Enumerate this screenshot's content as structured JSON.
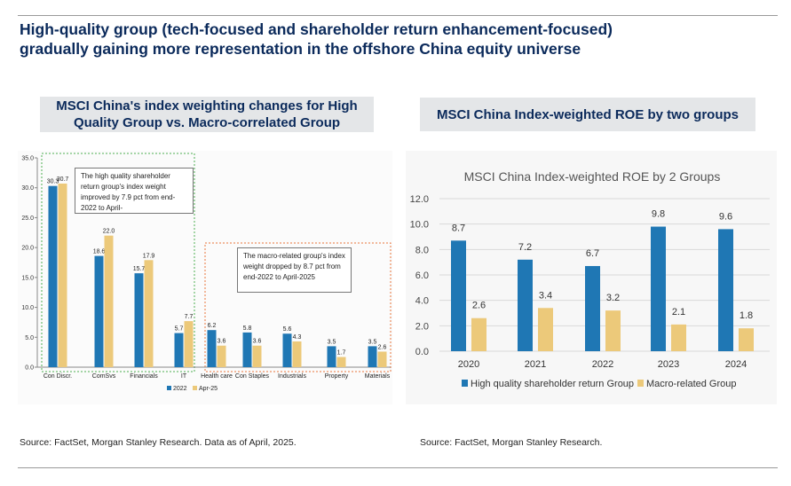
{
  "headline_line1": "High-quality group (tech-focused and shareholder return enhancement-focused)",
  "headline_line2": "gradually gaining more representation in the offshore China equity universe",
  "left_panel_title_line1": "MSCI China's index weighting changes for High",
  "left_panel_title_line2": "Quality Group  vs. Macro-correlated Group",
  "right_panel_title": "MSCI China Index-weighted ROE by two groups",
  "left_source": "Source: FactSet, Morgan Stanley Research. Data as of April, 2025.",
  "right_source": "Source: FactSet, Morgan Stanley Research.",
  "colors": {
    "navy": "#0b2a5b",
    "blue": "#1f77b4",
    "tan": "#ecc97a",
    "green_dash": "#4caf50",
    "orange_dash": "#e8743b"
  },
  "chart_data": [
    {
      "type": "bar",
      "title": "",
      "categories": [
        "Con Discr.",
        "ComSvs",
        "Financials",
        "IT",
        "Health care",
        "Con Staples",
        "Industrials",
        "Property",
        "Materials"
      ],
      "series": [
        {
          "name": "2022",
          "values": [
            30.3,
            18.6,
            15.7,
            5.7,
            6.2,
            5.8,
            5.6,
            3.5,
            3.5
          ]
        },
        {
          "name": "Apr-25",
          "values": [
            30.7,
            22.0,
            17.9,
            7.7,
            3.6,
            3.6,
            4.3,
            1.7,
            2.6
          ]
        }
      ],
      "data_labels": [
        [
          "30.3",
          "18.6",
          "15.7",
          "5.7",
          "6.2",
          "5.8",
          "5.6",
          "3.5",
          "3.5"
        ],
        [
          "30.7",
          "22.0",
          "17.9",
          "7.7",
          "3.6",
          "3.6",
          "4.3",
          "1.7",
          "2.6"
        ]
      ],
      "yticks": [
        "0.0",
        "5.0",
        "10.0",
        "15.0",
        "20.0",
        "25.0",
        "30.0",
        "35.0"
      ],
      "ylim": [
        0,
        35
      ],
      "grid": false,
      "legend": "bottom",
      "annotations": [
        "The high quality shareholder return group's index weight improved by 7.9 pct from end-2022 to April-",
        "The macro-related group's index weight dropped by 8.7 pct from end-2022 to April-2025"
      ]
    },
    {
      "type": "bar",
      "title": "MSCI China Index-weighted ROE by 2 Groups",
      "categories": [
        "2020",
        "2021",
        "2022",
        "2023",
        "2024"
      ],
      "series": [
        {
          "name": "High quality shareholder return Group",
          "values": [
            8.7,
            7.2,
            6.7,
            9.8,
            9.6
          ]
        },
        {
          "name": "Macro-related Group",
          "values": [
            2.6,
            3.4,
            3.2,
            2.1,
            1.8
          ]
        }
      ],
      "data_labels": [
        [
          "8.7",
          "7.2",
          "6.7",
          "9.8",
          "9.6"
        ],
        [
          "2.6",
          "3.4",
          "3.2",
          "2.1",
          "1.8"
        ]
      ],
      "yticks": [
        "0.0",
        "2.0",
        "4.0",
        "6.0",
        "8.0",
        "10.0",
        "12.0"
      ],
      "ylim": [
        0,
        12
      ],
      "grid": true,
      "legend": "bottom"
    }
  ]
}
